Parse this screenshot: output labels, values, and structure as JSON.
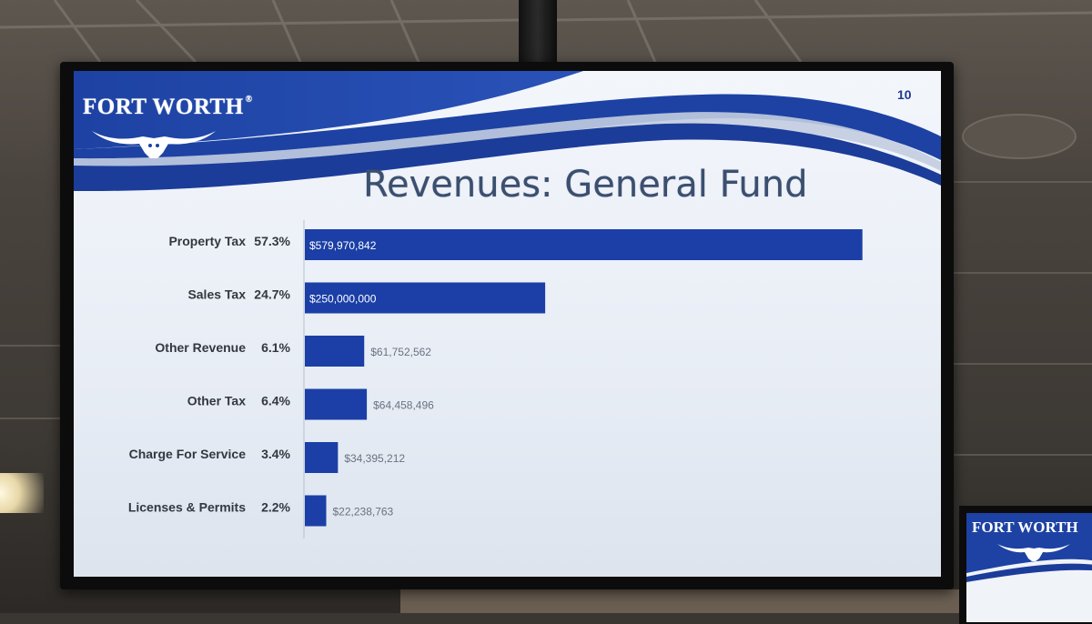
{
  "slide": {
    "logo_text": "FORT WORTH",
    "logo_registered": "®",
    "page_number": "10",
    "title": "Revenues: General Fund"
  },
  "colors": {
    "bar": "#1b3fa6",
    "banner_blue": "#1f45a8",
    "title": "#3b4f70",
    "label": "#333840"
  },
  "second_monitor": {
    "logo_text": "FORT WORTH"
  },
  "chart_data": {
    "type": "bar",
    "orientation": "horizontal",
    "title": "Revenues: General Fund",
    "categories": [
      "Property Tax",
      "Sales Tax",
      "Other Revenue",
      "Other Tax",
      "Charge For Service",
      "Licenses & Permits"
    ],
    "percents": [
      "57.3%",
      "24.7%",
      "6.1%",
      "6.4%",
      "3.4%",
      "2.2%"
    ],
    "values": [
      579970842,
      250000000,
      61752562,
      64458496,
      34395212,
      22238763
    ],
    "value_labels": [
      "$579,970,842",
      "$250,000,000",
      "$61,752,562",
      "$64,458,496",
      "$34,395,212",
      "$22,238,763"
    ],
    "xlim": [
      0,
      620000000
    ],
    "grid": false,
    "legend": "none"
  }
}
